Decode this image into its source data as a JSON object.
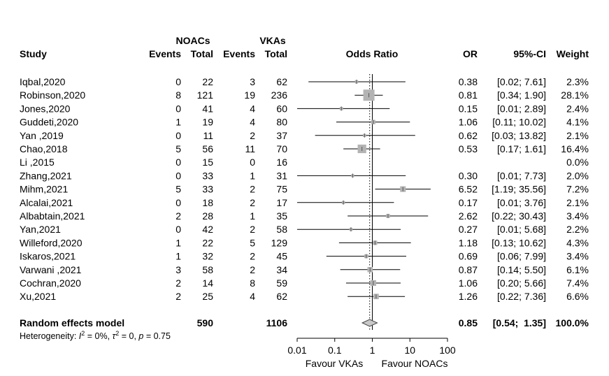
{
  "chart_data": {
    "type": "forest",
    "scale": "log",
    "xlim": [
      0.01,
      100
    ],
    "null_value": 1,
    "pooled_reference_line": "dotted",
    "headers": {
      "study": "Study",
      "group1": "NOACs",
      "group2": "VKAs",
      "events": "Events",
      "total": "Total",
      "effect": "Odds Ratio",
      "or": "OR",
      "ci": "95%-CI",
      "weight": "Weight"
    },
    "studies": [
      {
        "study": "Iqbal,2020",
        "e1": "0",
        "n1": "22",
        "e2": "3",
        "n2": "62",
        "or": 0.38,
        "lo": 0.02,
        "hi": 7.61,
        "or_text": "0.38",
        "ci_text": "[0.02;  7.61]",
        "weight": 2.3,
        "weight_text": "2.3%"
      },
      {
        "study": "Robinson,2020",
        "e1": "8",
        "n1": "121",
        "e2": "19",
        "n2": "236",
        "or": 0.81,
        "lo": 0.34,
        "hi": 1.9,
        "or_text": "0.81",
        "ci_text": "[0.34;  1.90]",
        "weight": 28.1,
        "weight_text": "28.1%"
      },
      {
        "study": "Jones,2020",
        "e1": "0",
        "n1": "41",
        "e2": "4",
        "n2": "60",
        "or": 0.15,
        "lo": 0.01,
        "hi": 2.89,
        "or_text": "0.15",
        "ci_text": "[0.01;  2.89]",
        "weight": 2.4,
        "weight_text": "2.4%"
      },
      {
        "study": "Guddeti,2020",
        "e1": "1",
        "n1": "19",
        "e2": "4",
        "n2": "80",
        "or": 1.06,
        "lo": 0.11,
        "hi": 10.02,
        "or_text": "1.06",
        "ci_text": "[0.11; 10.02]",
        "weight": 4.1,
        "weight_text": "4.1%"
      },
      {
        "study": "Yan ,2019",
        "e1": "0",
        "n1": "11",
        "e2": "2",
        "n2": "37",
        "or": 0.62,
        "lo": 0.03,
        "hi": 13.82,
        "or_text": "0.62",
        "ci_text": "[0.03; 13.82]",
        "weight": 2.1,
        "weight_text": "2.1%"
      },
      {
        "study": "Chao,2018",
        "e1": "5",
        "n1": "56",
        "e2": "11",
        "n2": "70",
        "or": 0.53,
        "lo": 0.17,
        "hi": 1.61,
        "or_text": "0.53",
        "ci_text": "[0.17;  1.61]",
        "weight": 16.4,
        "weight_text": "16.4%"
      },
      {
        "study": "Li ,2015",
        "e1": "0",
        "n1": "15",
        "e2": "0",
        "n2": "16",
        "or": null,
        "lo": null,
        "hi": null,
        "or_text": "",
        "ci_text": "",
        "weight": 0.0,
        "weight_text": "0.0%"
      },
      {
        "study": "Zhang,2021",
        "e1": "0",
        "n1": "33",
        "e2": "1",
        "n2": "31",
        "or": 0.3,
        "lo": 0.01,
        "hi": 7.73,
        "or_text": "0.30",
        "ci_text": "[0.01;  7.73]",
        "weight": 2.0,
        "weight_text": "2.0%"
      },
      {
        "study": "Mihm,2021",
        "e1": "5",
        "n1": "33",
        "e2": "2",
        "n2": "75",
        "or": 6.52,
        "lo": 1.19,
        "hi": 35.56,
        "or_text": "6.52",
        "ci_text": "[1.19; 35.56]",
        "weight": 7.2,
        "weight_text": "7.2%"
      },
      {
        "study": "Alcalai,2021",
        "e1": "0",
        "n1": "18",
        "e2": "2",
        "n2": "17",
        "or": 0.17,
        "lo": 0.01,
        "hi": 3.76,
        "or_text": "0.17",
        "ci_text": "[0.01;  3.76]",
        "weight": 2.1,
        "weight_text": "2.1%"
      },
      {
        "study": "Albabtain,2021",
        "e1": "2",
        "n1": "28",
        "e2": "1",
        "n2": "35",
        "or": 2.62,
        "lo": 0.22,
        "hi": 30.43,
        "or_text": "2.62",
        "ci_text": "[0.22; 30.43]",
        "weight": 3.4,
        "weight_text": "3.4%"
      },
      {
        "study": "Yan,2021",
        "e1": "0",
        "n1": "42",
        "e2": "2",
        "n2": "58",
        "or": 0.27,
        "lo": 0.01,
        "hi": 5.68,
        "or_text": "0.27",
        "ci_text": "[0.01;  5.68]",
        "weight": 2.2,
        "weight_text": "2.2%"
      },
      {
        "study": "Willeford,2020",
        "e1": "1",
        "n1": "22",
        "e2": "5",
        "n2": "129",
        "or": 1.18,
        "lo": 0.13,
        "hi": 10.62,
        "or_text": "1.18",
        "ci_text": "[0.13; 10.62]",
        "weight": 4.3,
        "weight_text": "4.3%"
      },
      {
        "study": "Iskaros,2021",
        "e1": "1",
        "n1": "32",
        "e2": "2",
        "n2": "45",
        "or": 0.69,
        "lo": 0.06,
        "hi": 7.99,
        "or_text": "0.69",
        "ci_text": "[0.06;  7.99]",
        "weight": 3.4,
        "weight_text": "3.4%"
      },
      {
        "study": " Varwani ,2021",
        "e1": "3",
        "n1": "58",
        "e2": "2",
        "n2": "34",
        "or": 0.87,
        "lo": 0.14,
        "hi": 5.5,
        "or_text": "0.87",
        "ci_text": "[0.14;  5.50]",
        "weight": 6.1,
        "weight_text": "6.1%"
      },
      {
        "study": "Cochran,2020",
        "e1": "2",
        "n1": "14",
        "e2": "8",
        "n2": "59",
        "or": 1.06,
        "lo": 0.2,
        "hi": 5.66,
        "or_text": "1.06",
        "ci_text": "[0.20;  5.66]",
        "weight": 7.4,
        "weight_text": "7.4%"
      },
      {
        "study": "Xu,2021",
        "e1": "2",
        "n1": "25",
        "e2": "4",
        "n2": "62",
        "or": 1.26,
        "lo": 0.22,
        "hi": 7.36,
        "or_text": "1.26",
        "ci_text": "[0.22;  7.36]",
        "weight": 6.6,
        "weight_text": "6.6%"
      }
    ],
    "pooled": {
      "label": "Random effects model",
      "n1": "590",
      "n2": "1106",
      "or": 0.85,
      "lo": 0.54,
      "hi": 1.35,
      "or_text": "0.85",
      "ci_text": "[0.54;  1.35]",
      "weight_text": "100.0%"
    },
    "heterogeneity": {
      "prefix": "Heterogeneity: ",
      "i2_symbol": "I",
      "i2_sup": "2",
      "i2_value": " = 0%, ",
      "tau_symbol": "τ",
      "tau_sup": "2",
      "tau_value": " = 0, ",
      "p_symbol": "p",
      "p_value": " = 0.75"
    },
    "x_ticks": [
      {
        "value": 0.01,
        "label": "0.01"
      },
      {
        "value": 0.1,
        "label": "0.1"
      },
      {
        "value": 1,
        "label": "1"
      },
      {
        "value": 10,
        "label": "10"
      },
      {
        "value": 100,
        "label": "100"
      }
    ],
    "favour_left": "Favour VKAs",
    "favour_right": "Favour NOACs",
    "colors": {
      "square": "#b3b3b3",
      "diamond": "#c8c8c8",
      "line": "#000000"
    }
  }
}
